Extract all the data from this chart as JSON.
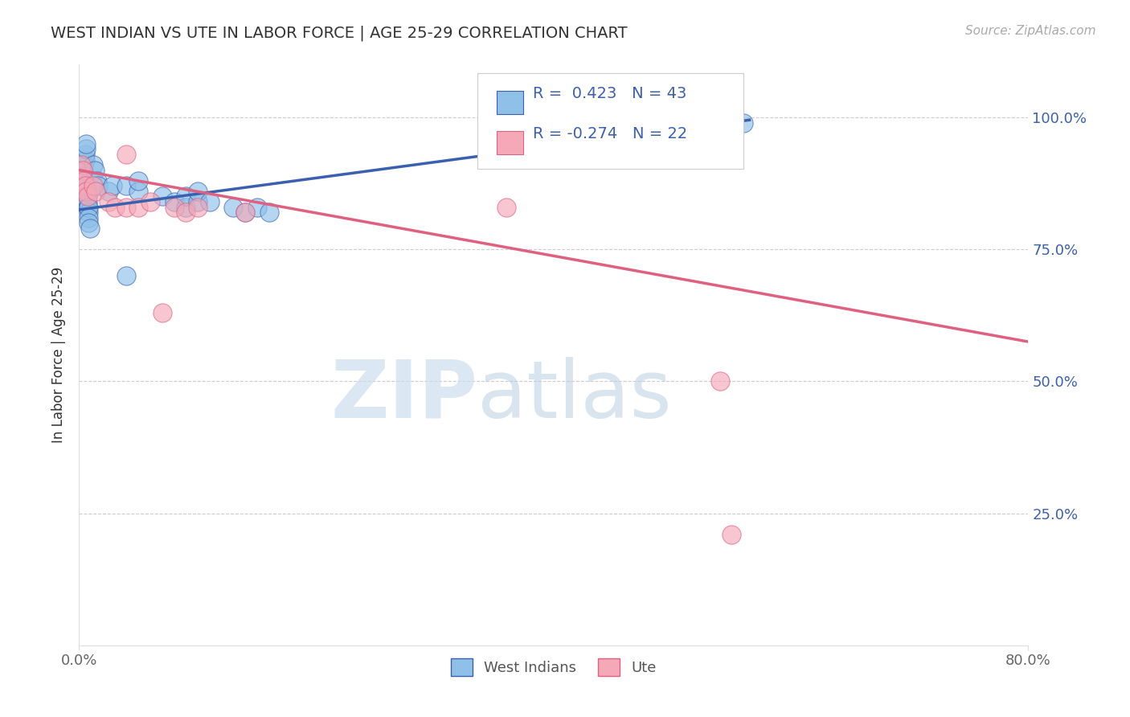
{
  "title": "WEST INDIAN VS UTE IN LABOR FORCE | AGE 25-29 CORRELATION CHART",
  "source_text": "Source: ZipAtlas.com",
  "ylabel": "In Labor Force | Age 25-29",
  "xlim": [
    0.0,
    0.8
  ],
  "ylim": [
    0.0,
    1.1
  ],
  "xtick_labels": [
    "0.0%",
    "80.0%"
  ],
  "xtick_positions": [
    0.0,
    0.8
  ],
  "ytick_labels": [
    "25.0%",
    "50.0%",
    "75.0%",
    "100.0%"
  ],
  "ytick_positions": [
    0.25,
    0.5,
    0.75,
    1.0
  ],
  "blue_R": 0.423,
  "blue_N": 43,
  "pink_R": -0.274,
  "pink_N": 22,
  "legend_label_blue": "West Indians",
  "legend_label_pink": "Ute",
  "blue_color": "#8ec0e8",
  "pink_color": "#f4a8b8",
  "blue_line_color": "#3a60b0",
  "pink_line_color": "#e06080",
  "watermark_zip": "ZIP",
  "watermark_atlas": "atlas",
  "watermark_color": "#ccdded",
  "background_color": "#ffffff",
  "blue_scatter_x": [
    0.002,
    0.003,
    0.004,
    0.004,
    0.005,
    0.005,
    0.006,
    0.006,
    0.006,
    0.006,
    0.007,
    0.007,
    0.007,
    0.007,
    0.008,
    0.008,
    0.008,
    0.008,
    0.009,
    0.012,
    0.013,
    0.015,
    0.016,
    0.025,
    0.028,
    0.04,
    0.05,
    0.05,
    0.07,
    0.08,
    0.09,
    0.09,
    0.1,
    0.1,
    0.11,
    0.13,
    0.14,
    0.15,
    0.16,
    0.04,
    0.52,
    0.54,
    0.56
  ],
  "blue_scatter_y": [
    0.88,
    0.89,
    0.9,
    0.91,
    0.92,
    0.93,
    0.94,
    0.95,
    0.87,
    0.86,
    0.85,
    0.86,
    0.84,
    0.83,
    0.82,
    0.83,
    0.81,
    0.8,
    0.79,
    0.91,
    0.9,
    0.88,
    0.87,
    0.86,
    0.87,
    0.87,
    0.86,
    0.88,
    0.85,
    0.84,
    0.83,
    0.85,
    0.84,
    0.86,
    0.84,
    0.83,
    0.82,
    0.83,
    0.82,
    0.7,
    0.99,
    0.985,
    0.99
  ],
  "pink_scatter_x": [
    0.002,
    0.003,
    0.004,
    0.005,
    0.006,
    0.007,
    0.012,
    0.014,
    0.025,
    0.03,
    0.04,
    0.05,
    0.06,
    0.08,
    0.09,
    0.1,
    0.14,
    0.04,
    0.07,
    0.36,
    0.54,
    0.55
  ],
  "pink_scatter_y": [
    0.91,
    0.9,
    0.88,
    0.87,
    0.86,
    0.85,
    0.87,
    0.86,
    0.84,
    0.83,
    0.83,
    0.83,
    0.84,
    0.83,
    0.82,
    0.83,
    0.82,
    0.93,
    0.63,
    0.83,
    0.5,
    0.21
  ],
  "blue_trendline_x": [
    0.0,
    0.565
  ],
  "blue_trendline_y": [
    0.825,
    0.995
  ],
  "pink_trendline_x": [
    0.0,
    0.8
  ],
  "pink_trendline_y": [
    0.9,
    0.575
  ]
}
